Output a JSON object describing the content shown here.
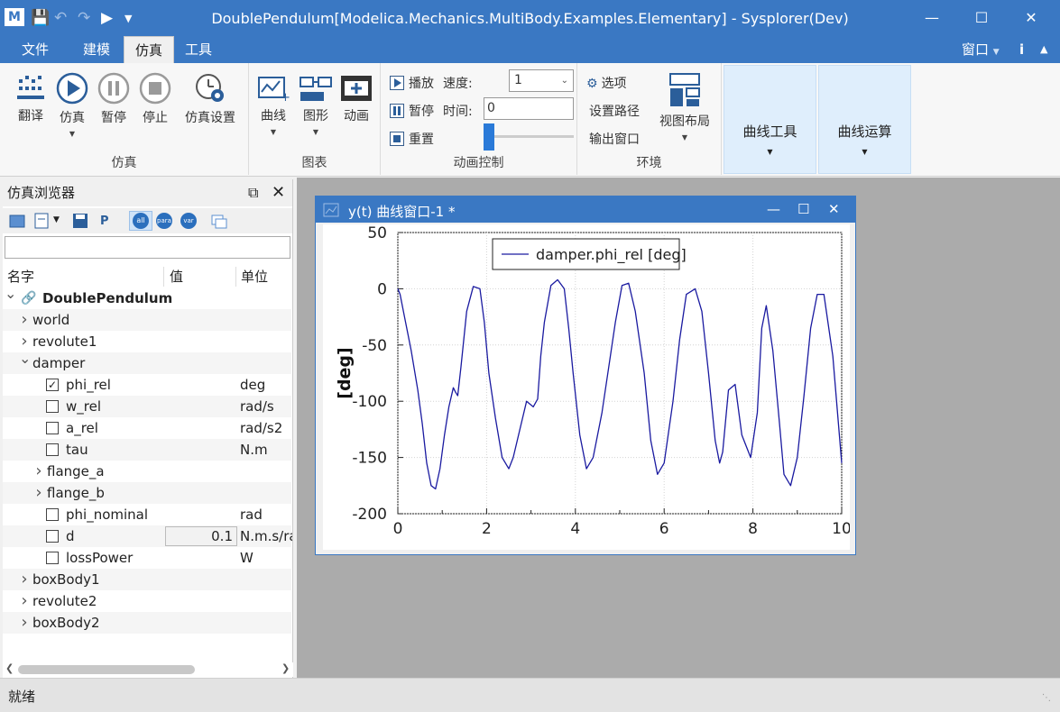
{
  "window": {
    "title": "DoublePendulum[Modelica.Mechanics.MultiBody.Examples.Elementary] - Sysplorer(Dev)",
    "logo_text": "M"
  },
  "menu": {
    "items": [
      "文件",
      "建模",
      "仿真",
      "工具"
    ],
    "active": "仿真",
    "right_window": "窗口",
    "right_info": "i"
  },
  "ribbon": {
    "sim_group": {
      "label": "仿真",
      "translate": "翻译",
      "simulate": "仿真",
      "pause": "暂停",
      "stop": "停止",
      "settings": "仿真设置"
    },
    "chart_group": {
      "label": "图表",
      "curve": "曲线",
      "graphic": "图形",
      "animation": "动画"
    },
    "anim_group": {
      "label": "动画控制",
      "play": "播放",
      "pause": "暂停",
      "reset": "重置",
      "speed_label": "速度:",
      "speed_value": "1",
      "time_label": "时间:",
      "time_value": "0"
    },
    "env_group": {
      "label": "环境",
      "options": "选项",
      "set_path": "设置路径",
      "output_window": "输出窗口",
      "view_layout": "视图布局"
    },
    "curve_tools": "曲线工具",
    "curve_ops": "曲线运算"
  },
  "browser": {
    "title": "仿真浏览器",
    "search_placeholder": "",
    "columns": {
      "name": "名字",
      "value": "值",
      "unit": "单位"
    },
    "tools": {
      "all": "all",
      "para": "para",
      "var": "var"
    },
    "rows": [
      {
        "name": "DoublePendulum",
        "level": 0,
        "expand": "open",
        "bold": true,
        "icon": "link"
      },
      {
        "name": "world",
        "level": 1,
        "expand": "closed"
      },
      {
        "name": "revolute1",
        "level": 1,
        "expand": "closed"
      },
      {
        "name": "damper",
        "level": 1,
        "expand": "open"
      },
      {
        "name": "phi_rel",
        "level": 2,
        "check": true,
        "unit": "deg"
      },
      {
        "name": "w_rel",
        "level": 2,
        "check": false,
        "unit": "rad/s"
      },
      {
        "name": "a_rel",
        "level": 2,
        "check": false,
        "unit": "rad/s2"
      },
      {
        "name": "tau",
        "level": 2,
        "check": false,
        "unit": "N.m"
      },
      {
        "name": "flange_a",
        "level": 2,
        "expand": "closed"
      },
      {
        "name": "flange_b",
        "level": 2,
        "expand": "closed"
      },
      {
        "name": "phi_nominal",
        "level": 2,
        "check": false,
        "unit": "rad"
      },
      {
        "name": "d",
        "level": 2,
        "check": false,
        "value": "0.1",
        "unit": "N.m.s/rad"
      },
      {
        "name": "lossPower",
        "level": 2,
        "check": false,
        "unit": "W"
      },
      {
        "name": "boxBody1",
        "level": 1,
        "expand": "closed"
      },
      {
        "name": "revolute2",
        "level": 1,
        "expand": "closed"
      },
      {
        "name": "boxBody2",
        "level": 1,
        "expand": "closed"
      }
    ]
  },
  "plot_window": {
    "title": "y(t) 曲线窗口-1 *"
  },
  "chart_data": {
    "type": "line",
    "title": "",
    "xlabel": "",
    "ylabel": "[deg]",
    "xlim": [
      0,
      10
    ],
    "ylim": [
      -200,
      50
    ],
    "xticks": [
      "0",
      "2",
      "4",
      "6",
      "8",
      "10"
    ],
    "yticks": [
      "50",
      "0",
      "-50",
      "-100",
      "-150",
      "-200"
    ],
    "grid": true,
    "legend": "top-left",
    "series": [
      {
        "name": "damper.phi_rel [deg]",
        "color": "#1a1aa0",
        "x": [
          0,
          0.05,
          0.15,
          0.3,
          0.45,
          0.55,
          0.65,
          0.75,
          0.85,
          0.95,
          1.05,
          1.15,
          1.25,
          1.3,
          1.35,
          1.42,
          1.55,
          1.7,
          1.85,
          1.95,
          2.05,
          2.2,
          2.35,
          2.5,
          2.6,
          2.75,
          2.9,
          3.05,
          3.15,
          3.22,
          3.3,
          3.45,
          3.6,
          3.75,
          3.85,
          3.95,
          4.1,
          4.25,
          4.4,
          4.6,
          4.75,
          4.9,
          5.05,
          5.2,
          5.35,
          5.55,
          5.7,
          5.85,
          6.0,
          6.2,
          6.35,
          6.5,
          6.7,
          6.85,
          7.0,
          7.15,
          7.25,
          7.32,
          7.45,
          7.6,
          7.75,
          7.95,
          8.1,
          8.2,
          8.3,
          8.45,
          8.6,
          8.7,
          8.85,
          9.0,
          9.15,
          9.3,
          9.45,
          9.6,
          9.8,
          10.0
        ],
        "y": [
          0,
          -5,
          -25,
          -55,
          -90,
          -120,
          -155,
          -175,
          -178,
          -160,
          -130,
          -105,
          -88,
          -92,
          -95,
          -70,
          -20,
          2,
          0,
          -30,
          -75,
          -115,
          -150,
          -160,
          -150,
          -125,
          -100,
          -105,
          -98,
          -60,
          -30,
          3,
          8,
          0,
          -35,
          -75,
          -130,
          -160,
          -150,
          -110,
          -70,
          -30,
          3,
          5,
          -20,
          -75,
          -135,
          -165,
          -155,
          -100,
          -45,
          -5,
          0,
          -20,
          -75,
          -135,
          -155,
          -145,
          -90,
          -85,
          -130,
          -150,
          -110,
          -35,
          -15,
          -55,
          -120,
          -165,
          -175,
          -150,
          -95,
          -35,
          -5,
          -5,
          -60,
          -155
        ]
      }
    ]
  }
}
